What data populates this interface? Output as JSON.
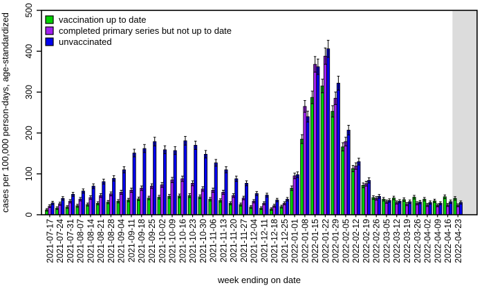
{
  "chart_data": {
    "type": "bar",
    "title": "",
    "xlabel": "week ending on date",
    "ylabel": "cases per 100,000 person-days, age-standardized",
    "ylim": [
      0,
      500
    ],
    "yticks": [
      0,
      100,
      200,
      300,
      400,
      500
    ],
    "grid": false,
    "legend_position": "top-left",
    "error_bars": true,
    "error_bar_fraction": 0.045,
    "error_bar_min": 2.5,
    "highlight_band": {
      "category": "2022-04-23",
      "color": "#DCDCDC"
    },
    "categories": [
      "2021-07-17",
      "2021-07-24",
      "2021-07-31",
      "2021-08-07",
      "2021-08-14",
      "2021-08-21",
      "2021-08-28",
      "2021-09-04",
      "2021-09-11",
      "2021-09-18",
      "2021-09-25",
      "2021-10-02",
      "2021-10-09",
      "2021-10-16",
      "2021-10-23",
      "2021-10-30",
      "2021-11-06",
      "2021-11-13",
      "2021-11-20",
      "2021-11-27",
      "2021-12-04",
      "2021-12-11",
      "2021-12-18",
      "2021-12-25",
      "2022-01-01",
      "2022-01-08",
      "2022-01-15",
      "2022-01-22",
      "2022-01-29",
      "2022-02-05",
      "2022-02-12",
      "2022-02-19",
      "2022-02-26",
      "2022-03-05",
      "2022-03-12",
      "2022-03-19",
      "2022-03-26",
      "2022-04-02",
      "2022-04-09",
      "2022-04-16",
      "2022-04-23"
    ],
    "series": [
      {
        "name": "vaccination up to date",
        "color": "#00D000",
        "values": [
          12,
          16,
          19,
          22,
          25,
          28,
          31,
          33,
          36,
          39,
          41,
          43,
          45,
          46,
          47,
          44,
          38,
          35,
          28,
          25,
          19,
          16,
          14,
          20,
          65,
          185,
          287,
          315,
          253,
          166,
          113,
          72,
          42,
          38,
          41,
          37,
          43,
          38,
          34,
          44,
          40
        ]
      },
      {
        "name": "completed primary series but not up to date",
        "color": "#A020F0",
        "values": [
          21,
          27,
          33,
          38,
          42,
          47,
          51,
          55,
          60,
          65,
          70,
          73,
          85,
          88,
          77,
          63,
          60,
          55,
          47,
          41,
          33,
          28,
          22,
          28,
          95,
          265,
          368,
          388,
          285,
          179,
          119,
          76,
          40,
          32,
          30,
          26,
          28,
          24,
          23,
          24,
          23
        ]
      },
      {
        "name": "unvaccinated",
        "color": "#0000EE",
        "values": [
          29,
          40,
          50,
          58,
          70,
          81,
          89,
          110,
          151,
          162,
          179,
          159,
          157,
          181,
          170,
          148,
          127,
          110,
          88,
          77,
          52,
          48,
          36,
          38,
          98,
          240,
          362,
          406,
          322,
          207,
          130,
          84,
          45,
          35,
          33,
          32,
          31,
          30,
          28,
          32,
          30
        ]
      }
    ]
  }
}
